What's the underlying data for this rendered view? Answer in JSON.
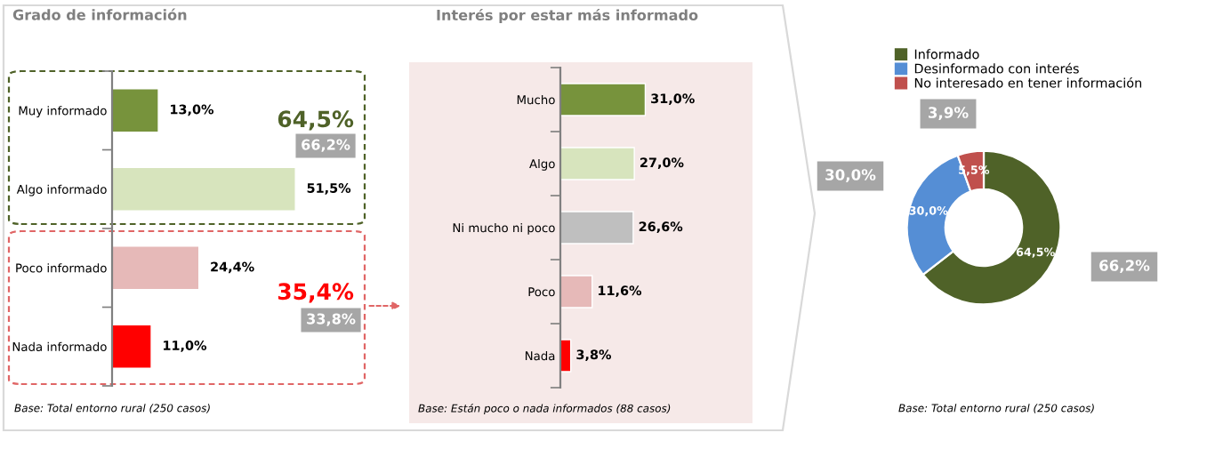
{
  "chart_data": [
    {
      "type": "bar",
      "orientation": "horizontal",
      "title": "Grado de información",
      "categories": [
        "Muy informado",
        "Algo informado",
        "Poco informado",
        "Nada informado"
      ],
      "values": [
        13.0,
        51.5,
        24.4,
        11.0
      ],
      "colors": [
        "#77933c",
        "#d7e4bd",
        "#e6b9b8",
        "#ff0000"
      ],
      "value_labels": [
        "13,0%",
        "51,5%",
        "24,4%",
        "11,0%"
      ],
      "annotations": [
        "64,5%",
        "66,2%",
        "35,4%",
        "33,8%",
        "Base: Total entorno rural (250 casos)"
      ]
    },
    {
      "type": "bar",
      "orientation": "horizontal",
      "title": "Interés por estar más informado",
      "categories": [
        "Mucho",
        "Algo",
        "Ni mucho ni poco",
        "Poco",
        "Nada"
      ],
      "values": [
        31.0,
        27.0,
        26.6,
        11.6,
        3.8
      ],
      "colors": [
        "#77933c",
        "#d7e4bd",
        "#bfbfbf",
        "#e6b9b8",
        "#ff0000"
      ],
      "value_labels": [
        "31,0%",
        "27,0%",
        "26,6%",
        "11,6%",
        "3,8%"
      ],
      "annotations": [
        "Base: Están poco o nada informados (88 casos)"
      ]
    },
    {
      "type": "donut",
      "categories": [
        "Informado",
        "Desinformado con interés",
        "No interesado en tener información"
      ],
      "values": [
        64.5,
        30.0,
        5.5
      ],
      "colors": [
        "#4f6228",
        "#558ed5",
        "#c0504d"
      ],
      "value_labels": [
        "64,5%",
        "30,0%",
        "5,5%"
      ],
      "legend": "top",
      "annotations": [
        "66,2%",
        "30,0%",
        "3,9%",
        "Base: Total entorno rural (250 casos)"
      ]
    }
  ]
}
